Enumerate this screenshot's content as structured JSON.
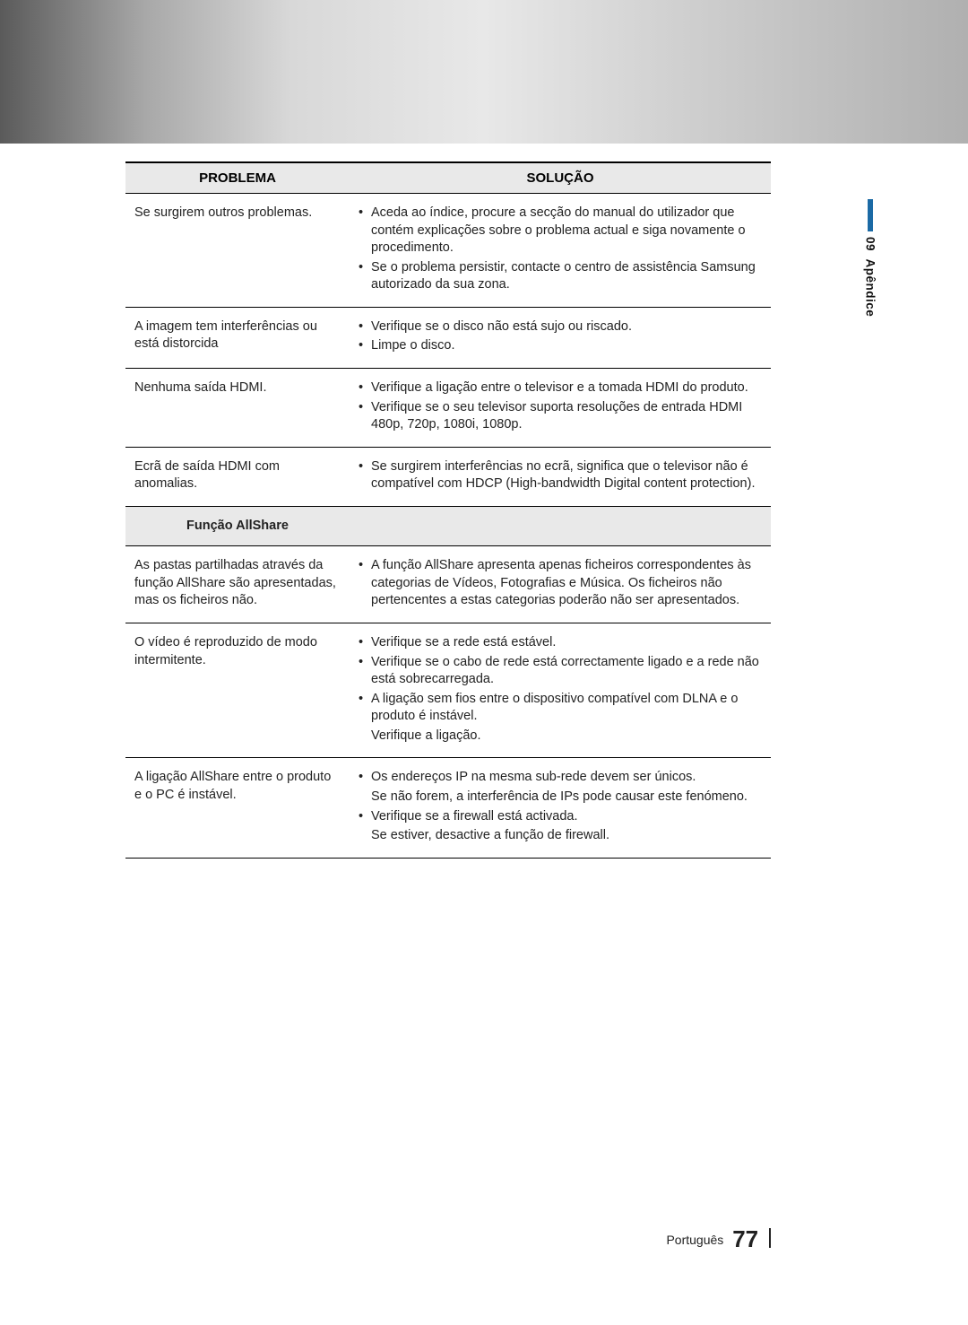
{
  "sideTab": {
    "number": "09",
    "label": "Apêndice",
    "barColor": "#1b6aa5"
  },
  "table": {
    "headers": {
      "problem": "PROBLEMA",
      "solution": "SOLUÇÃO"
    },
    "rows": [
      {
        "problem": "Se surgirem outros problemas.",
        "solutions": [
          {
            "t": "Aceda ao índice, procure a secção do manual do utilizador que contém explicações sobre o problema actual e siga novamente o procedimento.",
            "b": true
          },
          {
            "t": "Se o problema persistir, contacte o centro de assistência Samsung autorizado da sua zona.",
            "b": true
          }
        ]
      },
      {
        "problem": "A imagem tem interferências ou está distorcida",
        "solutions": [
          {
            "t": "Verifique se o disco não está sujo ou riscado.",
            "b": true
          },
          {
            "t": "Limpe o disco.",
            "b": true
          }
        ]
      },
      {
        "problem": "Nenhuma saída HDMI.",
        "solutions": [
          {
            "t": "Verifique a ligação entre o televisor e a tomada HDMI do produto.",
            "b": true
          },
          {
            "t": "Verifique se o seu televisor suporta resoluções de entrada HDMI 480p, 720p, 1080i, 1080p.",
            "b": true
          }
        ]
      },
      {
        "problem": "Ecrã de saída HDMI com anomalias.",
        "solutions": [
          {
            "t": "Se surgirem interferências no ecrã, significa que o televisor não é compatível com HDCP (High-bandwidth Digital content protection).",
            "b": true
          }
        ]
      },
      {
        "section": "Função AllShare"
      },
      {
        "problem": "As pastas partilhadas através da função AllShare são apresentadas, mas os ficheiros não.",
        "solutions": [
          {
            "t": "A função AllShare apresenta apenas ficheiros correspondentes às categorias de Vídeos, Fotografias e Música. Os ficheiros não pertencentes a estas categorias poderão não ser apresentados.",
            "b": true
          }
        ]
      },
      {
        "problem": "O vídeo é reproduzido de modo intermitente.",
        "solutions": [
          {
            "t": "Verifique se a rede está estável.",
            "b": true
          },
          {
            "t": "Verifique se o cabo de rede está correctamente ligado e a rede não está sobrecarregada.",
            "b": true
          },
          {
            "t": "A ligação sem fios entre o dispositivo compatível com DLNA e o produto é instável.",
            "b": true
          },
          {
            "t": "Verifique a ligação.",
            "b": false
          }
        ]
      },
      {
        "problem": "A ligação AllShare entre o produto e o PC é instável.",
        "solutions": [
          {
            "t": "Os endereços IP na mesma sub-rede devem ser únicos.",
            "b": true
          },
          {
            "t": "Se não forem, a interferência de IPs pode causar este fenómeno.",
            "b": false
          },
          {
            "t": "Verifique se a firewall está activada.",
            "b": true
          },
          {
            "t": "Se estiver, desactive a função de firewall.",
            "b": false
          }
        ]
      }
    ]
  },
  "footer": {
    "lang": "Português",
    "page": "77"
  }
}
